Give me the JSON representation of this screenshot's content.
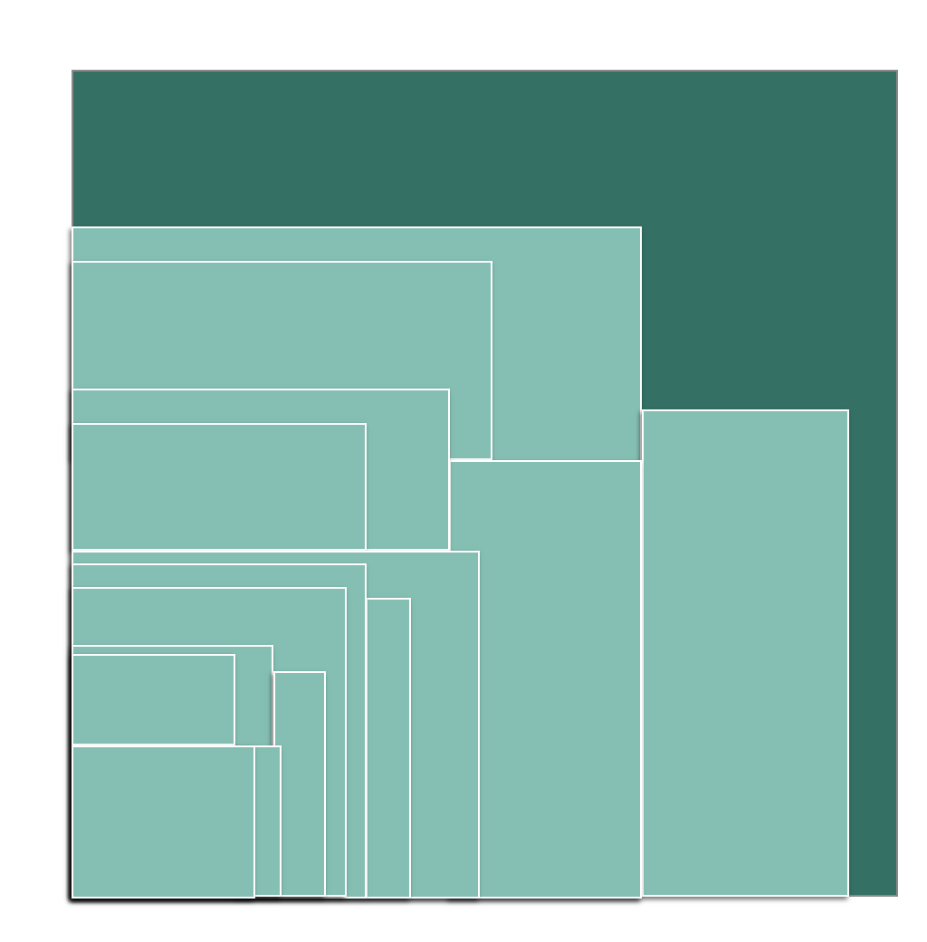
{
  "diagram": {
    "type": "nested-rectangles",
    "colors": {
      "background": "#ffffff",
      "outer_fill": "#347064",
      "outer_border": "#8a8a8a",
      "inner_fill": "#85bfb3",
      "inner_border": "#ffffff",
      "shadow": "#000000"
    },
    "panel_count": 16
  }
}
